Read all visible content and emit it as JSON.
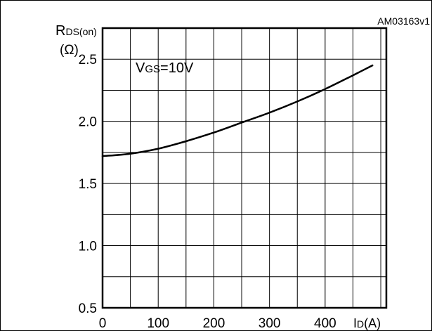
{
  "figure_id": "AM03163v1",
  "chart_data": {
    "type": "line",
    "y_label_main": "R",
    "y_label_sub": "DS(on)",
    "y_unit": "(Ω)",
    "x_label_main": "I",
    "x_label_sub": "D",
    "x_unit": "(A)",
    "annotation_main": "V",
    "annotation_sub": "GS",
    "annotation_value": "=10V",
    "xlim": [
      0,
      510
    ],
    "ylim": [
      0.5,
      2.75
    ],
    "x_grid": [
      0,
      50,
      100,
      150,
      200,
      250,
      300,
      350,
      400,
      450,
      500
    ],
    "y_grid": [
      0.5,
      0.75,
      1.0,
      1.25,
      1.5,
      1.75,
      2.0,
      2.25,
      2.5
    ],
    "x_ticks": [
      {
        "value": 0,
        "label": "0"
      },
      {
        "value": 100,
        "label": "100"
      },
      {
        "value": 200,
        "label": "200"
      },
      {
        "value": 300,
        "label": "300"
      },
      {
        "value": 400,
        "label": "400"
      }
    ],
    "y_ticks": [
      {
        "value": 0.5,
        "label": "0.5"
      },
      {
        "value": 1.0,
        "label": "1.0"
      },
      {
        "value": 1.5,
        "label": "1.5"
      },
      {
        "value": 2.0,
        "label": "2.0"
      },
      {
        "value": 2.5,
        "label": "2.5"
      }
    ],
    "series": [
      {
        "x": [
          0,
          50,
          100,
          150,
          200,
          250,
          300,
          350,
          400,
          450,
          485
        ],
        "y": [
          1.72,
          1.74,
          1.78,
          1.84,
          1.91,
          1.99,
          2.07,
          2.16,
          2.26,
          2.37,
          2.45
        ]
      }
    ],
    "grid": true
  }
}
